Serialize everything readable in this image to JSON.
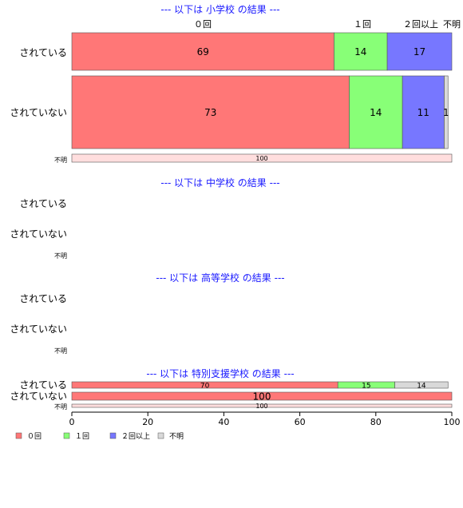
{
  "chart_data": {
    "type": "bar",
    "orientation": "horizontal",
    "stacked": true,
    "x_ticks": [
      "0",
      "20",
      "40",
      "60",
      "80",
      "100"
    ],
    "xlim": [
      0,
      100
    ],
    "column_headers": [
      "０回",
      "１回",
      "２回以上",
      "不明"
    ],
    "legend": {
      "placement": "bottom-left",
      "entries": [
        {
          "label": "０回",
          "color": "#ff7777"
        },
        {
          "label": "１回",
          "color": "#88ff77"
        },
        {
          "label": "２回以上",
          "color": "#7777ff"
        },
        {
          "label": "不明",
          "color": "#d9d9d9"
        }
      ]
    },
    "panels": [
      {
        "title": "--- 以下は 小学校 の結果 ---",
        "rows": [
          {
            "label": "されている",
            "values": [
              69,
              14,
              17,
              0
            ],
            "labels": [
              "69",
              "14",
              "17",
              ""
            ]
          },
          {
            "label": "されていない",
            "values": [
              73,
              14,
              11,
              1
            ],
            "labels": [
              "73",
              "14",
              "11",
              "1"
            ]
          },
          {
            "label": "不明",
            "values": [
              0,
              0,
              0,
              100
            ],
            "labels": [
              "",
              "",
              "",
              "100"
            ],
            "fill": "#ffdede"
          }
        ]
      },
      {
        "title": "--- 以下は 中学校 の結果 ---",
        "rows": [
          {
            "label": "されている",
            "values": [],
            "labels": []
          },
          {
            "label": "されていない",
            "values": [],
            "labels": []
          },
          {
            "label": "不明",
            "values": [],
            "labels": []
          }
        ]
      },
      {
        "title": "--- 以下は 高等学校 の結果 ---",
        "rows": [
          {
            "label": "されている",
            "values": [],
            "labels": []
          },
          {
            "label": "されていない",
            "values": [],
            "labels": []
          },
          {
            "label": "不明",
            "values": [],
            "labels": []
          }
        ]
      },
      {
        "title": "--- 以下は 特別支援学校 の結果 ---",
        "rows": [
          {
            "label": "されている",
            "values": [
              70,
              15,
              0,
              14
            ],
            "labels": [
              "70",
              "15",
              "",
              "14"
            ]
          },
          {
            "label": "されていない",
            "values": [
              100,
              0,
              0,
              0
            ],
            "labels": [
              "100",
              "",
              "",
              ""
            ]
          },
          {
            "label": "不明",
            "values": [
              0,
              0,
              0,
              100
            ],
            "labels": [
              "",
              "",
              "",
              "100"
            ],
            "fill": "#ffdede"
          }
        ]
      }
    ]
  }
}
